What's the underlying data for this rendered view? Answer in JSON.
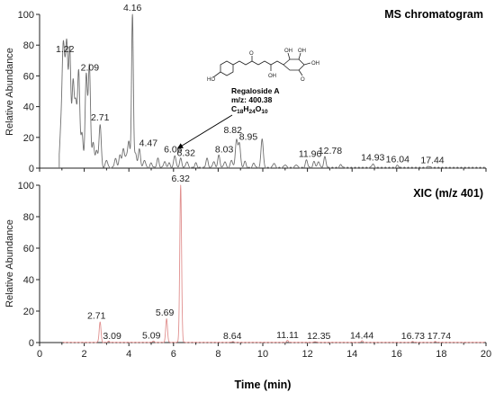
{
  "chart_data": [
    {
      "type": "line",
      "title": "MS chromatogram",
      "ylabel": "Relative Abundance",
      "xlim": [
        0,
        20
      ],
      "ylim": [
        0,
        100
      ],
      "yticks": [
        "0",
        "20",
        "40",
        "60",
        "80",
        "100"
      ],
      "color": "#707070",
      "peaks": [
        {
          "x": 0.95,
          "y": 22,
          "w": 0.05
        },
        {
          "x": 1.05,
          "y": 66,
          "w": 0.05
        },
        {
          "x": 1.13,
          "y": 40,
          "w": 0.05
        },
        {
          "x": 1.22,
          "y": 72,
          "w": 0.05
        },
        {
          "x": 1.35,
          "y": 76,
          "w": 0.05
        },
        {
          "x": 1.5,
          "y": 55,
          "w": 0.05
        },
        {
          "x": 1.62,
          "y": 40,
          "w": 0.05
        },
        {
          "x": 1.75,
          "y": 62,
          "w": 0.05
        },
        {
          "x": 1.9,
          "y": 22,
          "w": 0.05
        },
        {
          "x": 2.09,
          "y": 60,
          "w": 0.05
        },
        {
          "x": 2.23,
          "y": 66,
          "w": 0.05
        },
        {
          "x": 2.4,
          "y": 16,
          "w": 0.05
        },
        {
          "x": 2.55,
          "y": 11,
          "w": 0.05
        },
        {
          "x": 2.71,
          "y": 28,
          "w": 0.05
        },
        {
          "x": 3.0,
          "y": 5,
          "w": 0.05
        },
        {
          "x": 3.4,
          "y": 6,
          "w": 0.05
        },
        {
          "x": 3.6,
          "y": 8,
          "w": 0.05
        },
        {
          "x": 3.75,
          "y": 12,
          "w": 0.05
        },
        {
          "x": 3.88,
          "y": 7,
          "w": 0.05
        },
        {
          "x": 4.0,
          "y": 17,
          "w": 0.05
        },
        {
          "x": 4.16,
          "y": 100,
          "w": 0.04
        },
        {
          "x": 4.3,
          "y": 9,
          "w": 0.05
        },
        {
          "x": 4.47,
          "y": 12,
          "w": 0.05
        },
        {
          "x": 4.7,
          "y": 5,
          "w": 0.05
        },
        {
          "x": 5.0,
          "y": 3,
          "w": 0.05
        },
        {
          "x": 5.3,
          "y": 6,
          "w": 0.05
        },
        {
          "x": 5.6,
          "y": 4,
          "w": 0.05
        },
        {
          "x": 5.8,
          "y": 3,
          "w": 0.05
        },
        {
          "x": 6.06,
          "y": 8,
          "w": 0.05
        },
        {
          "x": 6.32,
          "y": 6,
          "w": 0.05
        },
        {
          "x": 6.6,
          "y": 4,
          "w": 0.05
        },
        {
          "x": 7.0,
          "y": 3,
          "w": 0.05
        },
        {
          "x": 7.5,
          "y": 6,
          "w": 0.05
        },
        {
          "x": 7.8,
          "y": 4,
          "w": 0.05
        },
        {
          "x": 8.03,
          "y": 8,
          "w": 0.05
        },
        {
          "x": 8.3,
          "y": 4,
          "w": 0.05
        },
        {
          "x": 8.6,
          "y": 5,
          "w": 0.05
        },
        {
          "x": 8.82,
          "y": 18,
          "w": 0.05
        },
        {
          "x": 8.95,
          "y": 16,
          "w": 0.05
        },
        {
          "x": 9.2,
          "y": 4,
          "w": 0.05
        },
        {
          "x": 9.6,
          "y": 3,
          "w": 0.05
        },
        {
          "x": 9.97,
          "y": 19,
          "w": 0.05
        },
        {
          "x": 10.5,
          "y": 3,
          "w": 0.05
        },
        {
          "x": 11.0,
          "y": 2,
          "w": 0.05
        },
        {
          "x": 11.5,
          "y": 2,
          "w": 0.05
        },
        {
          "x": 11.96,
          "y": 5,
          "w": 0.05
        },
        {
          "x": 12.3,
          "y": 4,
          "w": 0.05
        },
        {
          "x": 12.5,
          "y": 4,
          "w": 0.05
        },
        {
          "x": 12.78,
          "y": 7,
          "w": 0.05
        },
        {
          "x": 13.5,
          "y": 2,
          "w": 0.05
        },
        {
          "x": 14.93,
          "y": 2.5,
          "w": 0.05
        },
        {
          "x": 16.04,
          "y": 1.5,
          "w": 0.05
        },
        {
          "x": 17.44,
          "y": 1,
          "w": 0.05
        }
      ],
      "labels": [
        {
          "x": 1.22,
          "y": 72,
          "text": "1.22"
        },
        {
          "x": 2.09,
          "y": 60,
          "text": "2.09"
        },
        {
          "x": 2.71,
          "y": 28,
          "text": "2.71"
        },
        {
          "x": 4.16,
          "y": 100,
          "text": "4.16"
        },
        {
          "x": 4.47,
          "y": 12,
          "text": "4.47"
        },
        {
          "x": 6.06,
          "y": 8,
          "text": "6.06"
        },
        {
          "x": 6.32,
          "y": 6,
          "text": "6.32"
        },
        {
          "x": 8.03,
          "y": 8,
          "text": "8.03"
        },
        {
          "x": 8.82,
          "y": 18,
          "text": "8.82"
        },
        {
          "x": 8.95,
          "y": 16,
          "text": "8.95"
        },
        {
          "x": 11.96,
          "y": 5,
          "text": "11.96"
        },
        {
          "x": 12.78,
          "y": 7,
          "text": "12.78"
        },
        {
          "x": 14.93,
          "y": 2.5,
          "text": "14.93"
        },
        {
          "x": 16.04,
          "y": 1.5,
          "text": "16.04"
        },
        {
          "x": 17.44,
          "y": 1,
          "text": "17.44"
        }
      ],
      "annotation": {
        "name": "Regaloside A",
        "mz": "m/z: 400.38",
        "formula": "C18H24O10",
        "formula_parts": [
          {
            "t": "C",
            "sub": false
          },
          {
            "t": "18",
            "sub": true
          },
          {
            "t": "H",
            "sub": false
          },
          {
            "t": "24",
            "sub": true
          },
          {
            "t": "O",
            "sub": false
          },
          {
            "t": "10",
            "sub": true
          }
        ],
        "arrow_target": {
          "x": 6.2,
          "y": 13
        }
      }
    },
    {
      "type": "line",
      "title": "XIC (m/z 401)",
      "ylabel": "Relative Abundance",
      "xlabel": "Time (min)",
      "xlim": [
        0,
        20
      ],
      "ylim": [
        0,
        100
      ],
      "xticks": [
        "0",
        "2",
        "4",
        "6",
        "8",
        "10",
        "12",
        "14",
        "16",
        "18",
        "20"
      ],
      "yticks": [
        "0",
        "20",
        "40",
        "60",
        "80",
        "100"
      ],
      "color": "#e0908f",
      "peaks": [
        {
          "x": 2.71,
          "y": 13,
          "w": 0.04
        },
        {
          "x": 3.09,
          "y": 0.6,
          "w": 0.04
        },
        {
          "x": 5.09,
          "y": 0.8,
          "w": 0.04
        },
        {
          "x": 5.69,
          "y": 15,
          "w": 0.04
        },
        {
          "x": 6.32,
          "y": 100,
          "w": 0.04
        },
        {
          "x": 8.64,
          "y": 0.5,
          "w": 0.04
        },
        {
          "x": 11.11,
          "y": 1.2,
          "w": 0.04
        },
        {
          "x": 12.35,
          "y": 0.5,
          "w": 0.04
        },
        {
          "x": 14.44,
          "y": 1.0,
          "w": 0.04
        },
        {
          "x": 16.73,
          "y": 0.5,
          "w": 0.04
        },
        {
          "x": 17.74,
          "y": 0.5,
          "w": 0.04
        }
      ],
      "labels": [
        {
          "x": 2.71,
          "y": 13,
          "text": "2.71"
        },
        {
          "x": 3.09,
          "y": 0.6,
          "text": "3.09"
        },
        {
          "x": 5.09,
          "y": 0.8,
          "text": "5.09"
        },
        {
          "x": 5.69,
          "y": 15,
          "text": "5.69"
        },
        {
          "x": 6.32,
          "y": 100,
          "text": "6.32"
        },
        {
          "x": 8.64,
          "y": 0.5,
          "text": "8.64"
        },
        {
          "x": 11.11,
          "y": 1.2,
          "text": "11.11"
        },
        {
          "x": 12.35,
          "y": 0.5,
          "text": "12.35"
        },
        {
          "x": 14.44,
          "y": 1.0,
          "text": "14.44"
        },
        {
          "x": 16.73,
          "y": 0.5,
          "text": "16.73"
        },
        {
          "x": 17.74,
          "y": 0.5,
          "text": "17.74"
        }
      ]
    }
  ]
}
